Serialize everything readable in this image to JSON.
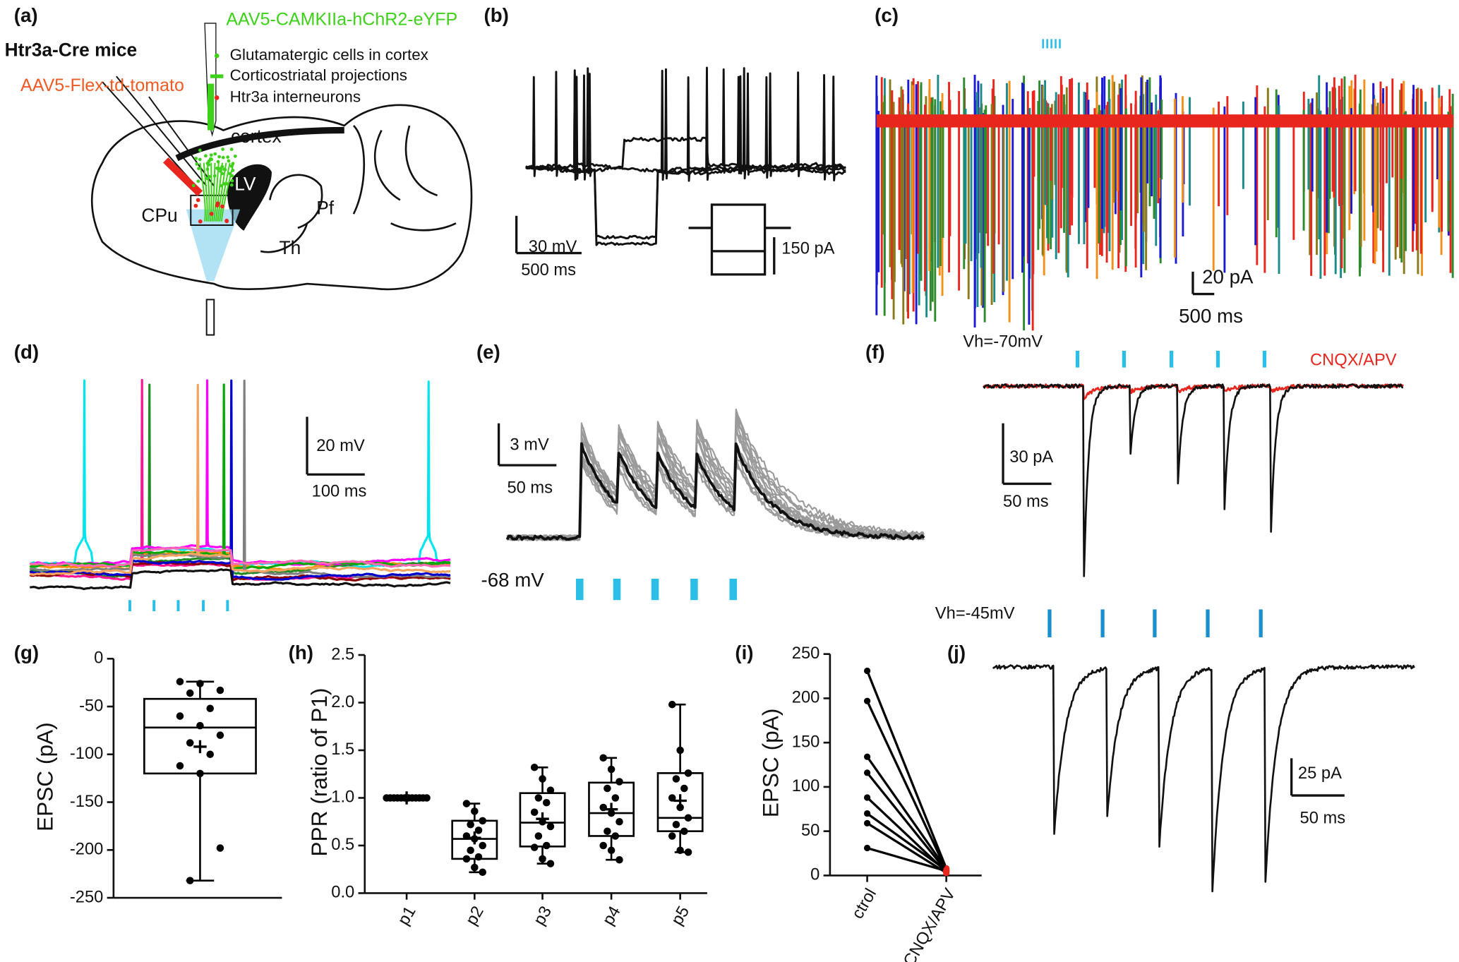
{
  "panels": {
    "a": {
      "label": "(a)",
      "title": "Htr3a-Cre mice",
      "virus_green": "AAV5-CAMKIIa-hChR2-eYFP",
      "virus_red": "AAV5-Flex-td-tomato",
      "legend": [
        "Glutamatergic cells in cortex",
        "Corticostriatal projections",
        "Htr3a interneurons"
      ],
      "regions": [
        "cortex",
        "LV",
        "CPu",
        "Pf",
        "Th"
      ]
    },
    "b": {
      "label": "(b)",
      "scale": [
        "30 mV",
        "500 ms",
        "150 pA"
      ]
    },
    "c": {
      "label": "(c)",
      "scale": [
        "20 pA",
        "500 ms"
      ]
    },
    "d": {
      "label": "(d)",
      "scale": [
        "20 mV",
        "100 ms"
      ]
    },
    "e": {
      "label": "(e)",
      "scale": [
        "3 mV",
        "50 ms"
      ],
      "baseline": "-68 mV"
    },
    "f": {
      "label": "(f)",
      "holding": "Vh=-70mV",
      "drug": "CNQX/APV",
      "scale": [
        "30 pA",
        "50 ms"
      ]
    },
    "j": {
      "label": "(j)",
      "holding": "Vh=-45mV",
      "scale": [
        "25 pA",
        "50 ms"
      ]
    }
  },
  "chart_data": [
    {
      "type": "box",
      "label": "(g)",
      "ylabel": "EPSC (pA)",
      "ylim": [
        -250,
        0
      ],
      "yticks": [
        0,
        -50,
        -100,
        -150,
        -200,
        -250
      ],
      "color": "#000000",
      "boxes": [
        {
          "min": -232,
          "q1": -120,
          "median": -72,
          "q3": -42,
          "max": -24,
          "mean": -92,
          "points": [
            -24,
            -26,
            -33,
            -36,
            -52,
            -60,
            -70,
            -80,
            -88,
            -100,
            -112,
            -120,
            -198,
            -232
          ]
        }
      ]
    },
    {
      "type": "box",
      "label": "(h)",
      "ylabel": "PPR (ratio of P1)",
      "categories": [
        "p1",
        "p2",
        "p3",
        "p4",
        "p5"
      ],
      "ylim": [
        0,
        2.5
      ],
      "yticks": [
        {
          "value": 0,
          "label": "0.0"
        },
        {
          "value": 0.5,
          "label": "0.5"
        },
        {
          "value": 1,
          "label": "1.0"
        },
        {
          "value": 1.5,
          "label": "1.5"
        },
        {
          "value": 2,
          "label": "2.0"
        },
        {
          "value": 2.5,
          "label": "2.5"
        }
      ],
      "color": "#000000",
      "boxes": [
        {
          "min": 1,
          "q1": 1,
          "median": 1,
          "q3": 1,
          "max": 1,
          "mean": 1,
          "points": [
            1,
            1,
            1,
            1,
            1,
            1,
            1,
            1,
            1,
            1,
            1,
            1
          ]
        },
        {
          "min": 0.22,
          "q1": 0.36,
          "median": 0.57,
          "q3": 0.76,
          "max": 0.94,
          "mean": 0.58,
          "points": [
            0.94,
            0.86,
            0.76,
            0.72,
            0.66,
            0.6,
            0.57,
            0.5,
            0.45,
            0.38,
            0.36,
            0.27,
            0.22
          ]
        },
        {
          "min": 0.31,
          "q1": 0.49,
          "median": 0.74,
          "q3": 1.05,
          "max": 1.32,
          "mean": 0.78,
          "points": [
            1.32,
            1.2,
            1.08,
            1.0,
            0.95,
            0.85,
            0.75,
            0.7,
            0.6,
            0.5,
            0.48,
            0.36,
            0.31
          ]
        },
        {
          "min": 0.35,
          "q1": 0.6,
          "median": 0.84,
          "q3": 1.16,
          "max": 1.42,
          "mean": 0.88,
          "points": [
            1.42,
            1.3,
            1.17,
            1.1,
            1.0,
            0.9,
            0.84,
            0.75,
            0.65,
            0.6,
            0.5,
            0.45,
            0.35
          ]
        },
        {
          "min": 0.43,
          "q1": 0.65,
          "median": 0.79,
          "q3": 1.26,
          "max": 1.98,
          "mean": 0.97,
          "points": [
            1.98,
            1.5,
            1.26,
            1.2,
            1.1,
            1.0,
            0.9,
            0.79,
            0.72,
            0.65,
            0.6,
            0.45,
            0.43
          ]
        }
      ]
    },
    {
      "type": "line",
      "label": "(i)",
      "ylabel": "EPSC (pA)",
      "categories": [
        "ctrol",
        "CNQX/APV"
      ],
      "ylim": [
        0,
        250
      ],
      "yticks": [
        0,
        50,
        100,
        150,
        200,
        250
      ],
      "color": "#000000",
      "drug_color": "#e8261e",
      "series": [
        {
          "values": [
            231,
            8
          ]
        },
        {
          "values": [
            197,
            6
          ]
        },
        {
          "values": [
            134,
            7
          ]
        },
        {
          "values": [
            116,
            5
          ]
        },
        {
          "values": [
            88,
            4
          ]
        },
        {
          "values": [
            70,
            6
          ]
        },
        {
          "values": [
            59,
            3
          ]
        },
        {
          "values": [
            31,
            5
          ]
        }
      ]
    }
  ]
}
